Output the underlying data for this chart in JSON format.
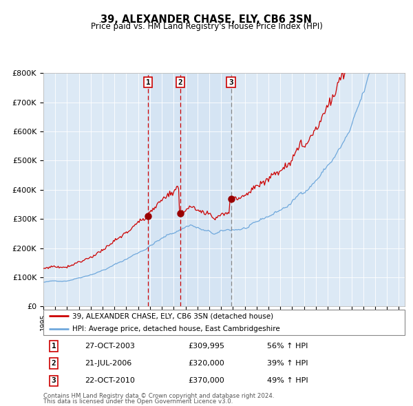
{
  "title": "39, ALEXANDER CHASE, ELY, CB6 3SN",
  "subtitle": "Price paid vs. HM Land Registry's House Price Index (HPI)",
  "background_color": "#ffffff",
  "plot_bg_color": "#dce9f5",
  "sale_prices": [
    309995,
    320000,
    370000
  ],
  "sale_labels": [
    "1",
    "2",
    "3"
  ],
  "sale_pct": [
    "56% ↑ HPI",
    "39% ↑ HPI",
    "49% ↑ HPI"
  ],
  "sale_date_str": [
    "27-OCT-2003",
    "21-JUL-2006",
    "22-OCT-2010"
  ],
  "sale_price_str": [
    "£309,995",
    "£320,000",
    "£370,000"
  ],
  "sale_times": [
    2003.833,
    2006.542,
    2010.833
  ],
  "legend_line1": "39, ALEXANDER CHASE, ELY, CB6 3SN (detached house)",
  "legend_line2": "HPI: Average price, detached house, East Cambridgeshire",
  "footer1": "Contains HM Land Registry data © Crown copyright and database right 2024.",
  "footer2": "This data is licensed under the Open Government Licence v3.0.",
  "hpi_color": "#6fa8dc",
  "sale_line_color": "#cc0000",
  "sale_dot_color": "#990000",
  "vline12_color": "#cc0000",
  "vline3_color": "#888888",
  "ylim": [
    0,
    800000
  ],
  "yticks": [
    0,
    100000,
    200000,
    300000,
    400000,
    500000,
    600000,
    700000,
    800000
  ],
  "xlim_start": 1995.0,
  "xlim_end": 2025.5
}
